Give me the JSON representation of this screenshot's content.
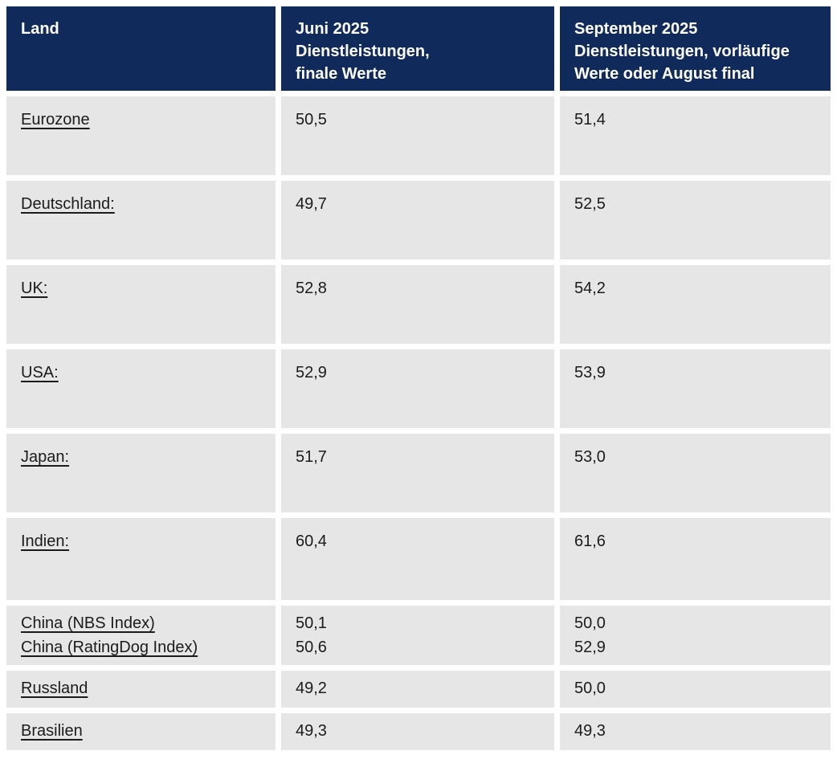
{
  "colors": {
    "header_bg": "#102a5c",
    "header_text": "#ffffff",
    "row_bg": "#e6e6e6",
    "body_text": "#1b1b1b"
  },
  "chart_data": {
    "type": "table",
    "columns": [
      {
        "lines": [
          "Land"
        ]
      },
      {
        "lines": [
          "Juni 2025",
          "Dienstleistungen,",
          "finale Werte"
        ]
      },
      {
        "lines": [
          "September 2025",
          "Dienstleistungen, vorläufige",
          "Werte oder August final"
        ]
      }
    ],
    "rows": [
      {
        "country": [
          "Eurozone"
        ],
        "juni_2025": [
          "50,5"
        ],
        "september_2025": [
          "51,4"
        ]
      },
      {
        "country": [
          "Deutschland:"
        ],
        "juni_2025": [
          "49,7"
        ],
        "september_2025": [
          "52,5"
        ]
      },
      {
        "country": [
          "UK:"
        ],
        "juni_2025": [
          "52,8"
        ],
        "september_2025": [
          "54,2"
        ]
      },
      {
        "country": [
          "USA:"
        ],
        "juni_2025": [
          "52,9"
        ],
        "september_2025": [
          "53,9"
        ]
      },
      {
        "country": [
          "Japan:"
        ],
        "juni_2025": [
          "51,7"
        ],
        "september_2025": [
          "53,0"
        ]
      },
      {
        "country": [
          "Indien:"
        ],
        "juni_2025": [
          "60,4"
        ],
        "september_2025": [
          "61,6"
        ]
      },
      {
        "country": [
          "China (NBS Index)",
          "China (RatingDog Index)"
        ],
        "juni_2025": [
          "50,1",
          "50,6"
        ],
        "september_2025": [
          "50,0",
          "52,9"
        ]
      },
      {
        "country": [
          "Russland"
        ],
        "juni_2025": [
          "49,2"
        ],
        "september_2025": [
          "50,0"
        ]
      },
      {
        "country": [
          "Brasilien"
        ],
        "juni_2025": [
          "49,3"
        ],
        "september_2025": [
          "49,3"
        ]
      }
    ]
  }
}
